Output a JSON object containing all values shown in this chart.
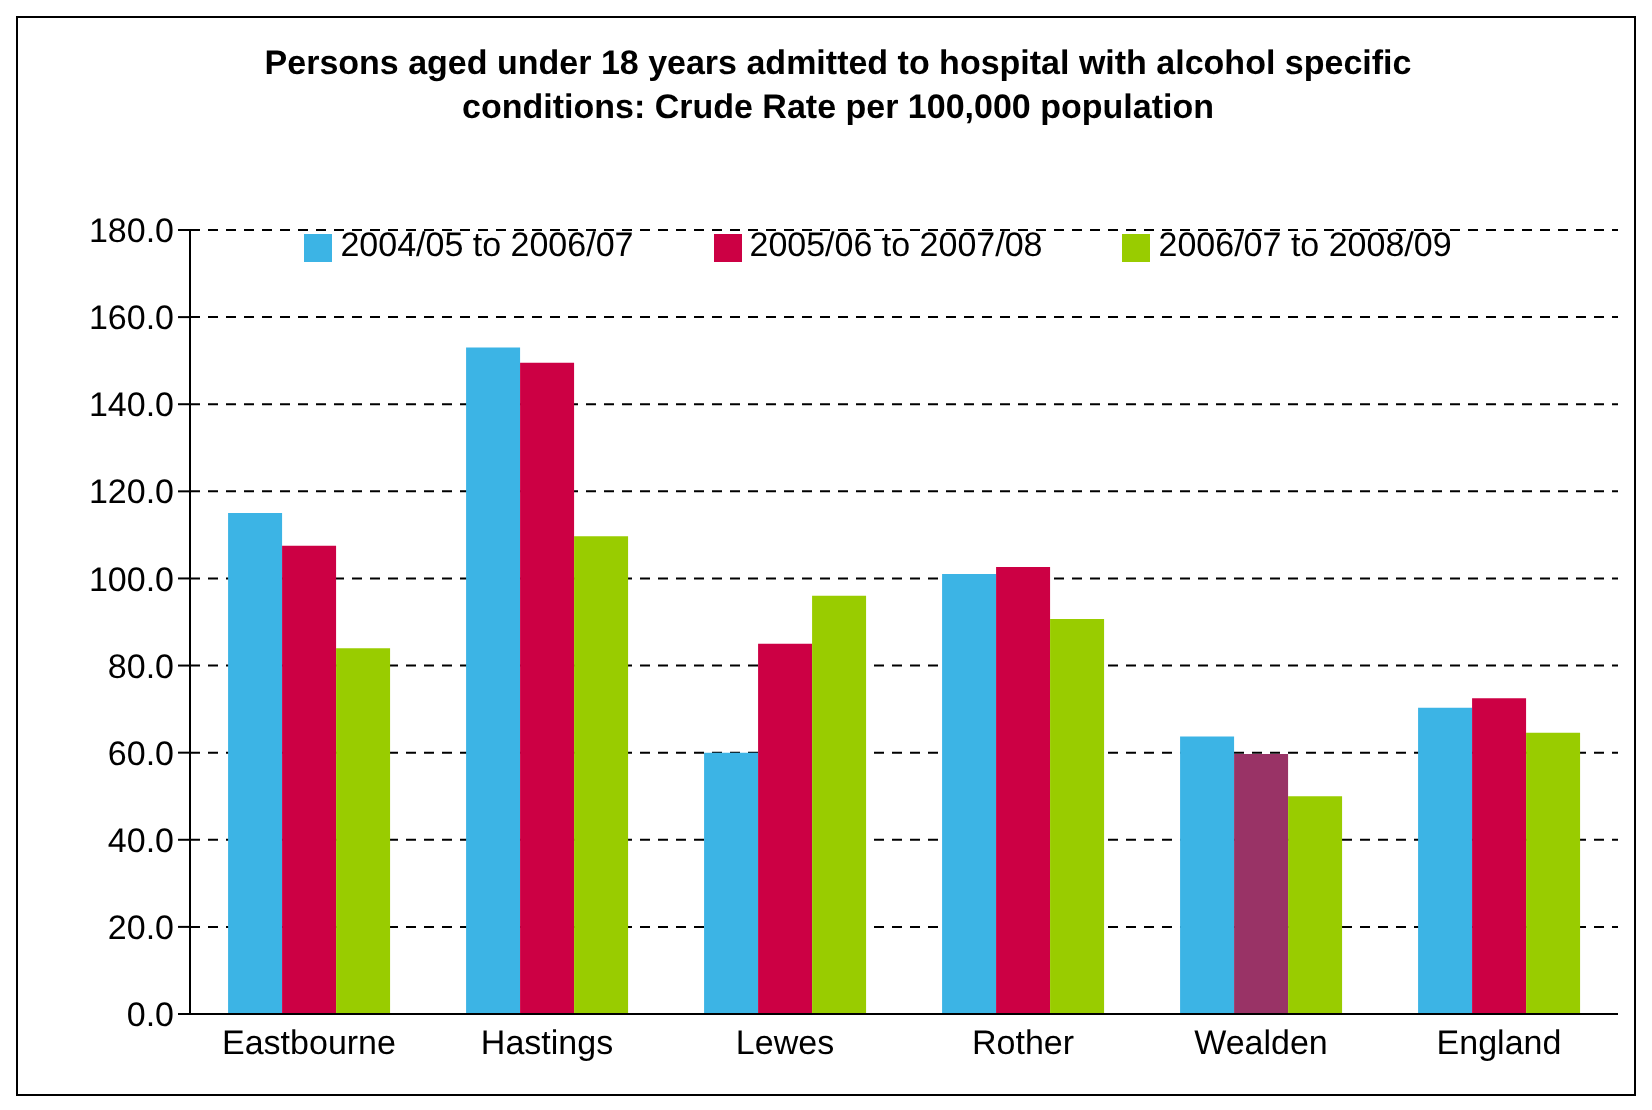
{
  "chart_data": {
    "type": "bar",
    "title": "Persons aged under 18 years admitted to hospital with alcohol specific conditions: Crude Rate per 100,000 population",
    "categories": [
      "Eastbourne",
      "Hastings",
      "Lewes",
      "Rother",
      "Wealden",
      "England"
    ],
    "series": [
      {
        "name": "2004/05 to 2006/07",
        "color": "#3cb4e5",
        "values": [
          115,
          153,
          60,
          101,
          63.7,
          70.3
        ]
      },
      {
        "name": "2005/06 to 2007/08",
        "color": "#cc0044",
        "colors": [
          "#cc0044",
          "#cc0044",
          "#cc0044",
          "#cc0044",
          "#993366",
          "#cc0044"
        ],
        "values": [
          107.5,
          149.5,
          85,
          102.6,
          59.7,
          72.5
        ]
      },
      {
        "name": "2006/07 to 2008/09",
        "color": "#99cc00",
        "values": [
          84,
          109.7,
          96,
          90.7,
          50,
          64.6
        ]
      }
    ],
    "ylim": [
      0,
      180
    ],
    "yticks": [
      {
        "value": 0,
        "label": "0.0"
      },
      {
        "value": 20,
        "label": "20.0"
      },
      {
        "value": 40,
        "label": "40.0"
      },
      {
        "value": 60,
        "label": "60.0"
      },
      {
        "value": 80,
        "label": "80.0"
      },
      {
        "value": 100,
        "label": "100.0"
      },
      {
        "value": 120,
        "label": "120.0"
      },
      {
        "value": 140,
        "label": "140.0"
      },
      {
        "value": 160,
        "label": "160.0"
      },
      {
        "value": 180,
        "label": "180.0"
      }
    ],
    "grid": "y",
    "legend": "top"
  }
}
